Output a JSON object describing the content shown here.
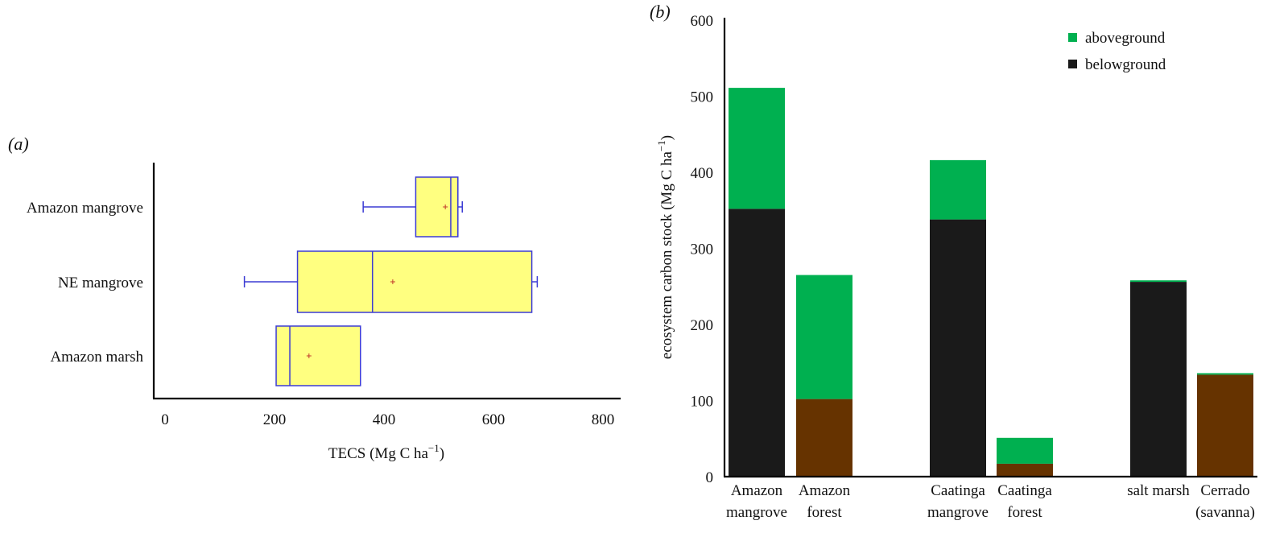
{
  "colors": {
    "box_fill": "#ffff80",
    "box_stroke": "#3b3bd4",
    "mean_marker": "#c0392b",
    "aboveground": "#00b050",
    "belowground_mangrove": "#1a1a1a",
    "belowground_terrestrial": "#663300"
  },
  "chart_data": [
    {
      "type": "box",
      "panel_label": "(a)",
      "orientation": "horizontal",
      "xlabel_prefix": "TECS (Mg C ha",
      "xlabel_sup": "−1",
      "xlabel_suffix": ")",
      "xlim": [
        0,
        800
      ],
      "xticks": [
        "0",
        "200",
        "400",
        "600",
        "800"
      ],
      "categories": [
        "Amazon mangrove",
        "NE mangrove",
        "Amazon marsh"
      ],
      "boxes": [
        {
          "name": "Amazon mangrove",
          "whisker_low": 362,
          "q1": 458,
          "median": 522,
          "q3": 535,
          "whisker_high": 543,
          "mean": 512
        },
        {
          "name": "NE mangrove",
          "whisker_low": 145,
          "q1": 242,
          "median": 379,
          "q3": 670,
          "whisker_high": 680,
          "mean": 416
        },
        {
          "name": "Amazon marsh",
          "q1": 203,
          "median": 228,
          "q3": 357,
          "mean": 263
        }
      ]
    },
    {
      "type": "stacked-bar",
      "panel_label": "(b)",
      "ylabel_prefix": "ecosystem carbon stock (Mg C ha",
      "ylabel_sup": "−1",
      "ylabel_suffix": ")",
      "ylim": [
        0,
        600
      ],
      "yticks": [
        "0",
        "100",
        "200",
        "300",
        "400",
        "500",
        "600"
      ],
      "legend_position": "top-right",
      "legend": [
        "aboveground",
        "belowground"
      ],
      "bars": [
        {
          "label_lines": [
            "Amazon",
            "mangrove"
          ],
          "belowground": 352,
          "aboveground": 159,
          "group": "mangrove"
        },
        {
          "label_lines": [
            "Amazon",
            "forest"
          ],
          "belowground": 102,
          "aboveground": 163,
          "group": "terrestrial"
        },
        {
          "label_lines": [
            "Caatinga",
            "mangrove"
          ],
          "belowground": 338,
          "aboveground": 78,
          "group": "mangrove"
        },
        {
          "label_lines": [
            "Caatinga",
            "forest"
          ],
          "belowground": 17,
          "aboveground": 34,
          "group": "terrestrial"
        },
        {
          "label_lines": [
            "salt marsh"
          ],
          "belowground": 256,
          "aboveground": 2,
          "group": "mangrove"
        },
        {
          "label_lines": [
            "Cerrado",
            "(savanna)"
          ],
          "belowground": 134,
          "aboveground": 2,
          "group": "terrestrial"
        }
      ]
    }
  ]
}
